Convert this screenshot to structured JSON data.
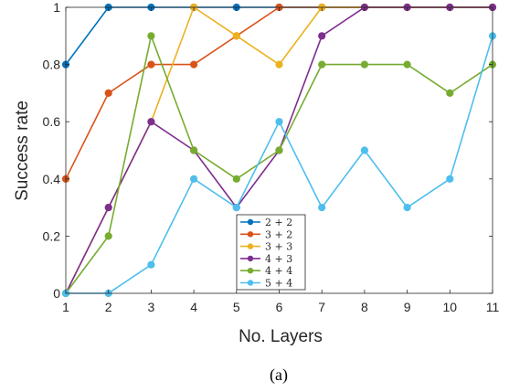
{
  "chart_data": {
    "type": "line",
    "title": "",
    "xlabel": "No. Layers",
    "ylabel": "Success rate",
    "caption": "(a)",
    "x": [
      1,
      2,
      3,
      4,
      5,
      6,
      7,
      8,
      9,
      10,
      11
    ],
    "xlim": [
      1,
      11
    ],
    "ylim": [
      0,
      1
    ],
    "xticks": [
      "1",
      "2",
      "3",
      "4",
      "5",
      "6",
      "7",
      "8",
      "9",
      "10",
      "11"
    ],
    "yticks": [
      "0",
      "0.2",
      "0.4",
      "0.6",
      "0.8",
      "1"
    ],
    "grid": false,
    "legend_position": "bottom-center inside plot",
    "series": [
      {
        "name": "2 + 2",
        "color": "#0072BD",
        "values": [
          0.8,
          1.0,
          1.0,
          1.0,
          1.0,
          1.0,
          1.0,
          1.0,
          1.0,
          1.0,
          1.0
        ]
      },
      {
        "name": "3 + 2",
        "color": "#D95319",
        "values": [
          0.4,
          0.7,
          0.8,
          0.8,
          0.9,
          1.0,
          1.0,
          1.0,
          1.0,
          1.0,
          1.0
        ]
      },
      {
        "name": "3 + 3",
        "color": "#EDB120",
        "values": [
          0.0,
          0.3,
          0.6,
          1.0,
          0.9,
          0.8,
          1.0,
          1.0,
          1.0,
          1.0,
          1.0
        ]
      },
      {
        "name": "4 + 3",
        "color": "#7E2F8E",
        "values": [
          0.0,
          0.3,
          0.6,
          0.5,
          0.3,
          0.5,
          0.9,
          1.0,
          1.0,
          1.0,
          1.0
        ]
      },
      {
        "name": "4 + 4",
        "color": "#77AC30",
        "values": [
          0.0,
          0.2,
          0.9,
          0.5,
          0.4,
          0.5,
          0.8,
          0.8,
          0.8,
          0.7,
          0.8
        ]
      },
      {
        "name": "5 + 4",
        "color": "#4DBEEE",
        "values": [
          0.0,
          0.0,
          0.1,
          0.4,
          0.3,
          0.6,
          0.3,
          0.5,
          0.3,
          0.4,
          0.9
        ]
      }
    ]
  }
}
